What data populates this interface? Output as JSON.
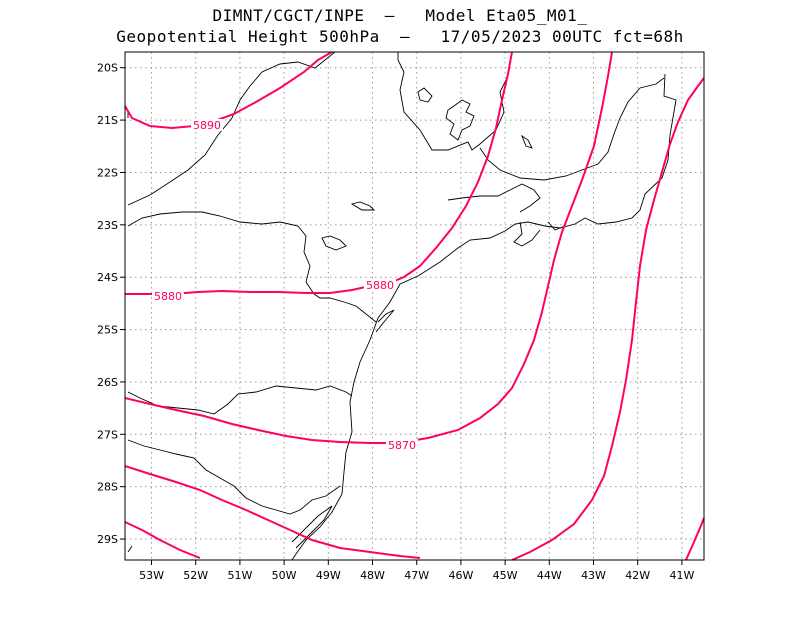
{
  "header": {
    "title_line1": "DIMNT/CGCT/INPE  –   Model Eta05_M01_",
    "title_line2": "Geopotential Height 500hPa  –   17/05/2023 00UTC fct=68h"
  },
  "map": {
    "lon_range": [
      -53.6,
      -40.5
    ],
    "lat_range": [
      -29.4,
      -19.7
    ],
    "lon_ticks": [
      -53,
      -52,
      -51,
      -50,
      -49,
      -48,
      -47,
      -46,
      -45,
      -44,
      -43,
      -42,
      -41
    ],
    "lat_ticks": [
      -20,
      -21,
      -22,
      -23,
      -24,
      -25,
      -26,
      -27,
      -28,
      -29
    ],
    "lon_tick_labels": [
      "53W",
      "52W",
      "51W",
      "50W",
      "49W",
      "48W",
      "47W",
      "46W",
      "45W",
      "44W",
      "43W",
      "42W",
      "41W"
    ],
    "lat_tick_labels": [
      "20S",
      "21S",
      "22S",
      "23S",
      "24S",
      "25S",
      "26S",
      "27S",
      "28S",
      "29S"
    ],
    "grid": true,
    "contour_color": "#ff0066",
    "labeled_contours": [
      {
        "label": "5890",
        "value": 5890
      },
      {
        "label": "5880",
        "value": 5880
      },
      {
        "label": "5880",
        "value": 5880
      },
      {
        "label": "5870",
        "value": 5870
      }
    ]
  }
}
